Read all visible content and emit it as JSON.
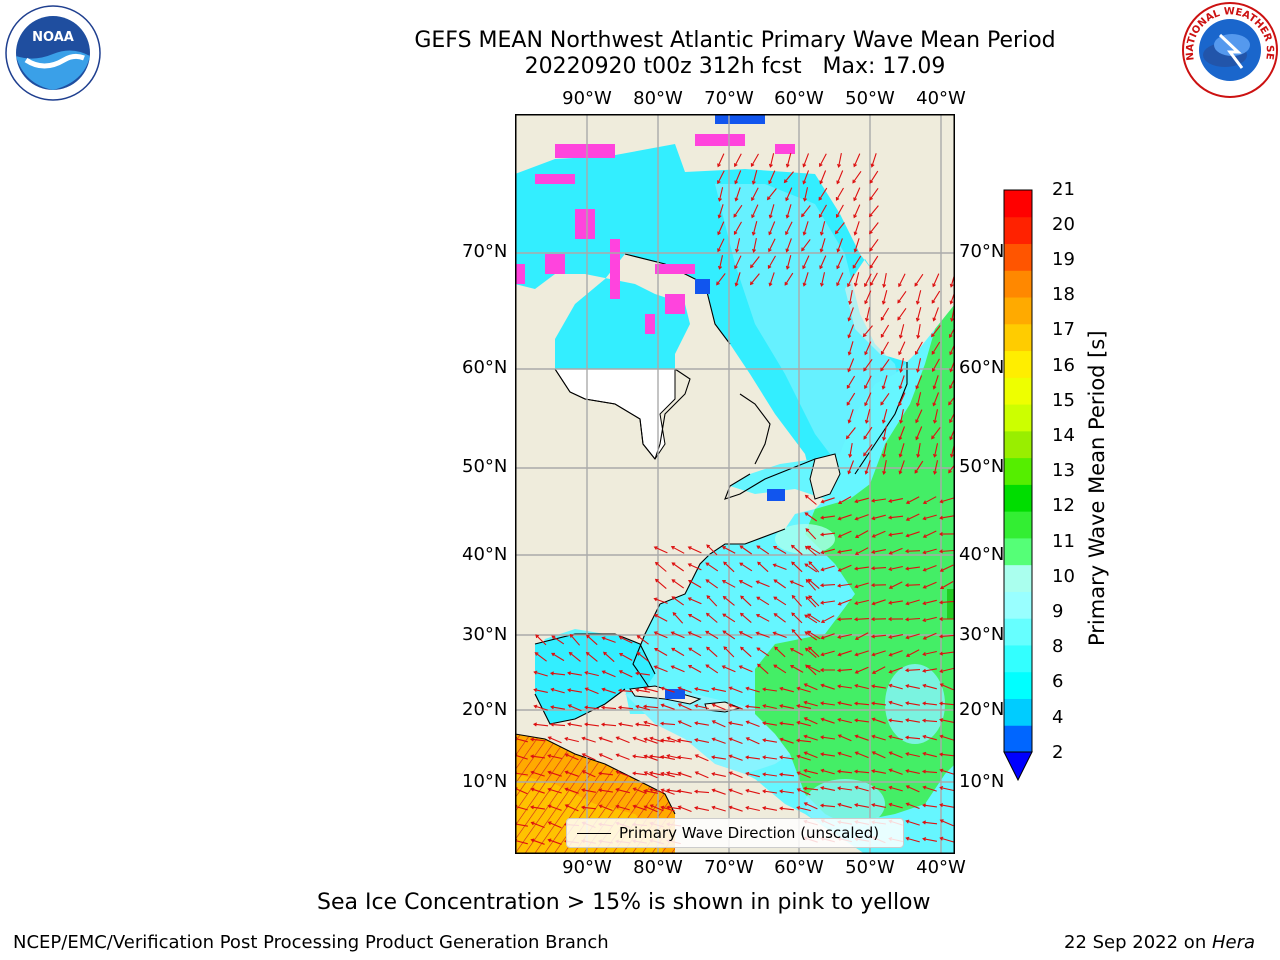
{
  "header": {
    "title_line1": "GEFS MEAN Northwest Atlantic Primary Wave Mean Period",
    "title_line2": "20220920 t00z 312h fcst   Max: 17.09"
  },
  "logos": {
    "left": "NOAA",
    "right_text": "NATIONAL WEATHER SERVICE"
  },
  "map": {
    "lon_labels": [
      "90°W",
      "80°W",
      "70°W",
      "60°W",
      "50°W",
      "40°W"
    ],
    "lat_labels": [
      "70°N",
      "60°N",
      "50°N",
      "40°N",
      "30°N",
      "20°N",
      "10°N"
    ],
    "legend": "Primary Wave Direction (unscaled)",
    "colors": {
      "land": "#efecdc",
      "ice": "#ff44dd"
    }
  },
  "colorbar": {
    "label": "Primary Wave Mean Period [s]",
    "ticks": [
      "21",
      "20",
      "19",
      "18",
      "17",
      "16",
      "15",
      "14",
      "13",
      "12",
      "11",
      "10",
      "9",
      "8",
      "6",
      "4",
      "2"
    ],
    "levels": [
      2,
      3,
      4,
      5,
      6,
      7,
      8,
      9,
      10,
      11,
      12,
      13,
      14,
      15,
      16,
      17,
      18,
      19,
      20,
      21
    ],
    "colors": [
      "#0066ff",
      "#00ccff",
      "#00ffff",
      "#33ffff",
      "#66ffff",
      "#99ffff",
      "#aaffee",
      "#55ff77",
      "#33ee33",
      "#00dd00",
      "#55ee00",
      "#99ee00",
      "#ccff00",
      "#eeff00",
      "#ffee00",
      "#ffcc00",
      "#ffaa00",
      "#ff8800",
      "#ff5500",
      "#ff2200",
      "#ff0000"
    ],
    "extend_color": "#0000ff"
  },
  "caption": "Sea Ice Concentration > 15% is shown in pink to yellow",
  "footer": {
    "left": "NCEP/EMC/Verification Post Processing Product Generation Branch",
    "right_date": "22 Sep 2022 on ",
    "right_host": "Hera"
  }
}
